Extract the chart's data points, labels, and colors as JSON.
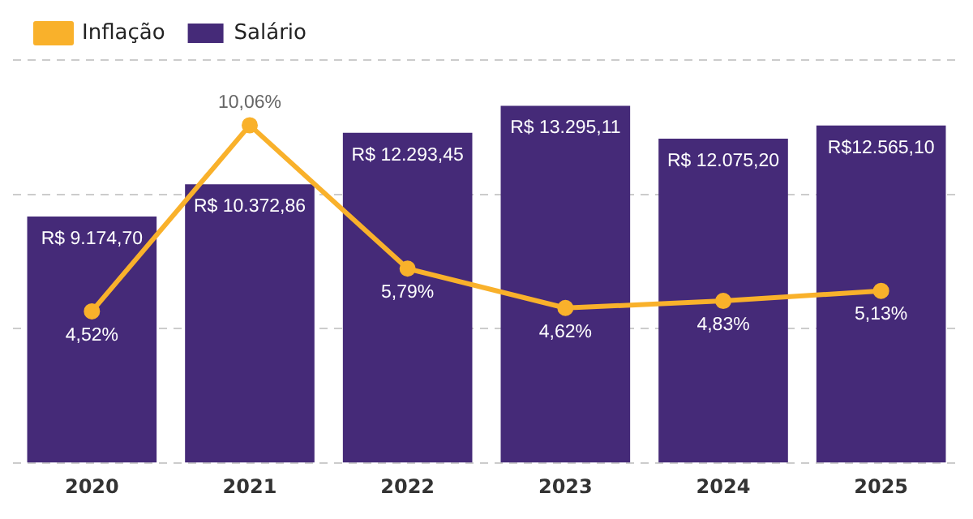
{
  "chart_data": {
    "type": "bar",
    "categories": [
      "2020",
      "2021",
      "2022",
      "2023",
      "2024",
      "2025"
    ],
    "series": [
      {
        "name": "Inflação",
        "type": "line",
        "axis": "y2",
        "color": "#f9b12b",
        "values": [
          4.52,
          10.06,
          5.79,
          4.62,
          4.83,
          5.13
        ],
        "value_labels": [
          "4,52%",
          "10,06%",
          "5,79%",
          "4,62%",
          "4,83%",
          "5,13%"
        ]
      },
      {
        "name": "Salário",
        "color": "#452a78",
        "values": [
          9174.7,
          10372.86,
          12293.45,
          13295.11,
          12075.2,
          12565.1
        ],
        "value_labels": [
          "R$ 9.174,70",
          "R$ 10.372,86",
          "R$ 12.293,45",
          "R$ 13.295,11",
          "R$ 12.075,20",
          "R$12.565,10"
        ]
      }
    ],
    "ylim": [
      0,
      15000
    ],
    "yticks": [
      {
        "value": 0,
        "label": null
      },
      {
        "value": 5000,
        "label": null
      },
      {
        "value": 10000,
        "label": null
      },
      {
        "value": 15000,
        "label": null
      }
    ],
    "y2lim": [
      0,
      12
    ],
    "grid": "y",
    "legend": "top left",
    "tick_labels": "x",
    "marker": "circle",
    "line_style": "solid"
  }
}
